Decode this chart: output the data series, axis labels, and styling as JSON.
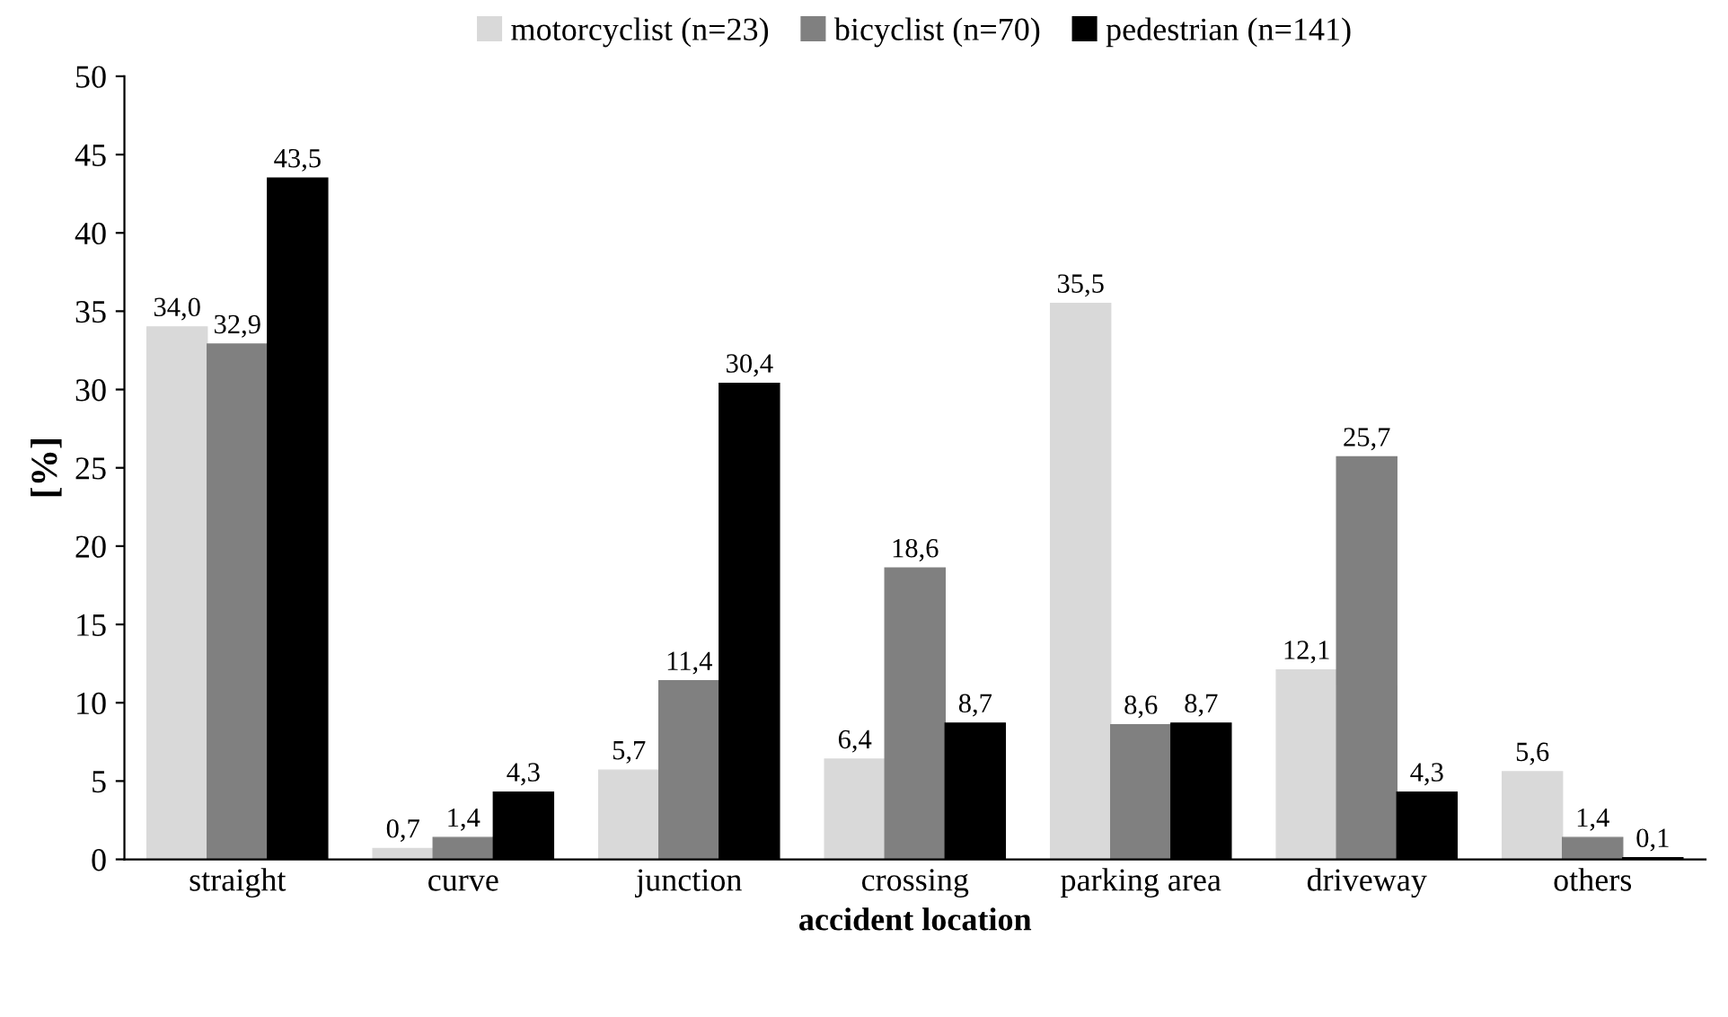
{
  "chart_data": {
    "type": "bar",
    "xlabel": "accident location",
    "ylabel": "[%]",
    "categories": [
      "straight",
      "curve",
      "junction",
      "crossing",
      "parking area",
      "driveway",
      "others"
    ],
    "series": [
      {
        "name": "motorcyclist (n=23)",
        "color": "#d9d9d9",
        "values": [
          34.0,
          0.7,
          5.7,
          6.4,
          35.5,
          12.1,
          5.6
        ],
        "value_labels": [
          "34,0",
          "0,7",
          "5,7",
          "6,4",
          "35,5",
          "12,1",
          "5,6"
        ]
      },
      {
        "name": "bicyclist (n=70)",
        "color": "#808080",
        "values": [
          32.9,
          1.4,
          11.4,
          18.6,
          8.6,
          25.7,
          1.4
        ],
        "value_labels": [
          "32,9",
          "1,4",
          "11,4",
          "18,6",
          "8,6",
          "25,7",
          "1,4"
        ]
      },
      {
        "name": "pedestrian (n=141)",
        "color": "#000000",
        "values": [
          43.5,
          4.3,
          30.4,
          8.7,
          8.7,
          4.3,
          0.1
        ],
        "value_labels": [
          "43,5",
          "4,3",
          "30,4",
          "8,7",
          "8,7",
          "4,3",
          "0,1"
        ]
      }
    ],
    "ylim": [
      0,
      50
    ],
    "yticks": [
      0,
      5,
      10,
      15,
      20,
      25,
      30,
      35,
      40,
      45,
      50
    ],
    "grid": false,
    "legend": "top"
  }
}
